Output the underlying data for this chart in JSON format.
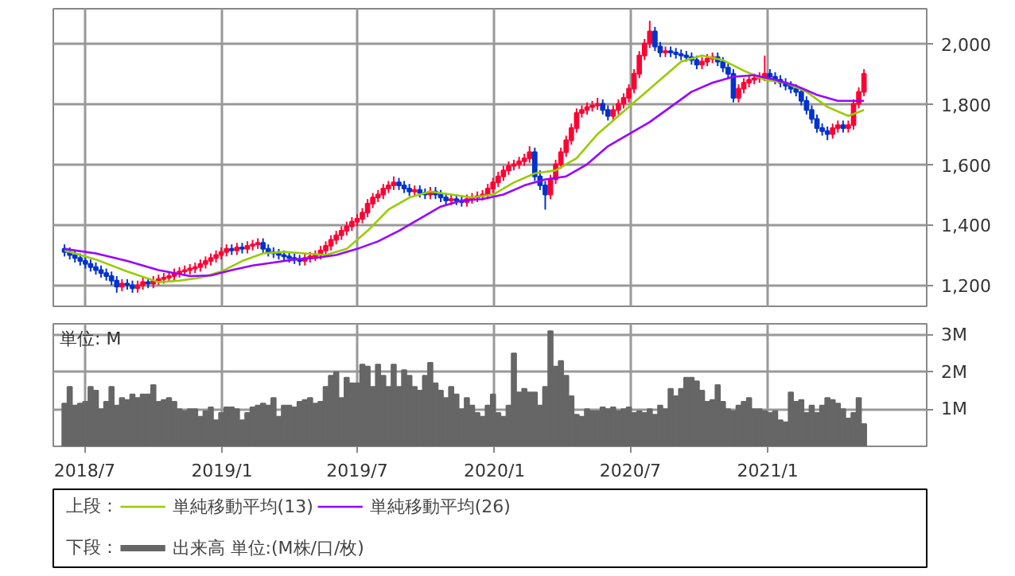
{
  "chart_data": [
    {
      "type": "candlestick",
      "legend_title": "上段：",
      "legend": "bottom",
      "grid": true,
      "tick_labels": "y",
      "xlim": [
        "2018-05-20",
        "2021-08-02"
      ],
      "xticks": [
        {
          "value": "2018-07-01",
          "label": null
        },
        {
          "value": "2019-01-01",
          "label": null
        },
        {
          "value": "2019-07-01",
          "label": null
        },
        {
          "value": "2020-01-01",
          "label": null
        },
        {
          "value": "2020-07-01",
          "label": null
        },
        {
          "value": "2021-01-01",
          "label": null
        }
      ],
      "ylim": [
        1130,
        2115
      ],
      "yticks": [
        {
          "value": 1200,
          "label": "1,200"
        },
        {
          "value": 1400,
          "label": "1,400"
        },
        {
          "value": 1600,
          "label": "1,600"
        },
        {
          "value": 1800,
          "label": "1,800"
        },
        {
          "value": 2000,
          "label": "2,000"
        }
      ],
      "x": [
        "2018-06-04",
        "2018-06-11",
        "2018-06-18",
        "2018-06-25",
        "2018-07-02",
        "2018-07-09",
        "2018-07-16",
        "2018-07-23",
        "2018-07-30",
        "2018-08-06",
        "2018-08-13",
        "2018-08-20",
        "2018-08-27",
        "2018-09-03",
        "2018-09-10",
        "2018-09-17",
        "2018-09-24",
        "2018-10-01",
        "2018-10-08",
        "2018-10-15",
        "2018-10-22",
        "2018-10-29",
        "2018-11-05",
        "2018-11-12",
        "2018-11-19",
        "2018-11-26",
        "2018-12-03",
        "2018-12-10",
        "2018-12-17",
        "2018-12-24",
        "2018-12-31",
        "2019-01-07",
        "2019-01-14",
        "2019-01-21",
        "2019-01-28",
        "2019-02-04",
        "2019-02-11",
        "2019-02-18",
        "2019-02-25",
        "2019-03-04",
        "2019-03-11",
        "2019-03-18",
        "2019-03-25",
        "2019-04-01",
        "2019-04-08",
        "2019-04-15",
        "2019-04-22",
        "2019-04-29",
        "2019-05-06",
        "2019-05-13",
        "2019-05-20",
        "2019-05-27",
        "2019-06-03",
        "2019-06-10",
        "2019-06-17",
        "2019-06-24",
        "2019-07-01",
        "2019-07-08",
        "2019-07-15",
        "2019-07-22",
        "2019-07-29",
        "2019-08-05",
        "2019-08-12",
        "2019-08-19",
        "2019-08-26",
        "2019-09-02",
        "2019-09-09",
        "2019-09-16",
        "2019-09-23",
        "2019-09-30",
        "2019-10-07",
        "2019-10-14",
        "2019-10-21",
        "2019-10-28",
        "2019-11-04",
        "2019-11-11",
        "2019-11-18",
        "2019-11-25",
        "2019-12-02",
        "2019-12-09",
        "2019-12-16",
        "2019-12-23",
        "2019-12-30",
        "2020-01-06",
        "2020-01-13",
        "2020-01-20",
        "2020-01-27",
        "2020-02-03",
        "2020-02-10",
        "2020-02-17",
        "2020-02-24",
        "2020-03-02",
        "2020-03-09",
        "2020-03-16",
        "2020-03-23",
        "2020-03-30",
        "2020-04-06",
        "2020-04-13",
        "2020-04-20",
        "2020-04-27",
        "2020-05-04",
        "2020-05-11",
        "2020-05-18",
        "2020-05-25",
        "2020-06-01",
        "2020-06-08",
        "2020-06-15",
        "2020-06-22",
        "2020-06-29",
        "2020-07-06",
        "2020-07-13",
        "2020-07-20",
        "2020-07-27",
        "2020-08-03",
        "2020-08-10",
        "2020-08-17",
        "2020-08-24",
        "2020-08-31",
        "2020-09-07",
        "2020-09-14",
        "2020-09-21",
        "2020-09-28",
        "2020-10-05",
        "2020-10-12",
        "2020-10-19",
        "2020-10-26",
        "2020-11-02",
        "2020-11-09",
        "2020-11-16",
        "2020-11-23",
        "2020-11-30",
        "2020-12-07",
        "2020-12-14",
        "2020-12-21",
        "2020-12-28",
        "2021-01-04",
        "2021-01-11",
        "2021-01-18",
        "2021-01-25",
        "2021-02-01",
        "2021-02-08",
        "2021-02-15",
        "2021-02-22",
        "2021-03-01",
        "2021-03-08",
        "2021-03-15",
        "2021-03-22",
        "2021-03-29",
        "2021-04-05",
        "2021-04-12",
        "2021-04-19",
        "2021-04-26",
        "2021-05-03",
        "2021-05-10"
      ],
      "ohlc": [
        [
          1320,
          1335,
          1295,
          1310
        ],
        [
          1310,
          1325,
          1285,
          1300
        ],
        [
          1300,
          1315,
          1275,
          1290
        ],
        [
          1290,
          1305,
          1265,
          1280
        ],
        [
          1280,
          1295,
          1255,
          1270
        ],
        [
          1270,
          1285,
          1245,
          1260
        ],
        [
          1260,
          1275,
          1235,
          1250
        ],
        [
          1250,
          1265,
          1225,
          1240
        ],
        [
          1240,
          1255,
          1215,
          1230
        ],
        [
          1230,
          1245,
          1200,
          1215
        ],
        [
          1215,
          1230,
          1175,
          1195
        ],
        [
          1195,
          1220,
          1180,
          1205
        ],
        [
          1205,
          1220,
          1185,
          1200
        ],
        [
          1200,
          1215,
          1175,
          1190
        ],
        [
          1190,
          1215,
          1175,
          1200
        ],
        [
          1200,
          1225,
          1185,
          1210
        ],
        [
          1210,
          1225,
          1190,
          1205
        ],
        [
          1205,
          1230,
          1190,
          1215
        ],
        [
          1215,
          1235,
          1200,
          1220
        ],
        [
          1220,
          1240,
          1205,
          1225
        ],
        [
          1225,
          1245,
          1210,
          1230
        ],
        [
          1230,
          1255,
          1215,
          1240
        ],
        [
          1240,
          1260,
          1225,
          1245
        ],
        [
          1245,
          1265,
          1230,
          1250
        ],
        [
          1250,
          1270,
          1235,
          1255
        ],
        [
          1255,
          1275,
          1240,
          1260
        ],
        [
          1260,
          1285,
          1245,
          1270
        ],
        [
          1270,
          1295,
          1255,
          1280
        ],
        [
          1280,
          1305,
          1265,
          1290
        ],
        [
          1290,
          1315,
          1275,
          1300
        ],
        [
          1300,
          1325,
          1285,
          1310
        ],
        [
          1310,
          1335,
          1295,
          1320
        ],
        [
          1320,
          1335,
          1300,
          1315
        ],
        [
          1315,
          1340,
          1300,
          1325
        ],
        [
          1325,
          1340,
          1305,
          1320
        ],
        [
          1320,
          1345,
          1305,
          1330
        ],
        [
          1330,
          1350,
          1315,
          1335
        ],
        [
          1335,
          1355,
          1320,
          1340
        ],
        [
          1340,
          1355,
          1305,
          1320
        ],
        [
          1320,
          1335,
          1295,
          1310
        ],
        [
          1310,
          1325,
          1290,
          1305
        ],
        [
          1305,
          1320,
          1285,
          1300
        ],
        [
          1300,
          1315,
          1280,
          1295
        ],
        [
          1295,
          1310,
          1275,
          1290
        ],
        [
          1290,
          1305,
          1270,
          1285
        ],
        [
          1285,
          1300,
          1265,
          1280
        ],
        [
          1280,
          1305,
          1265,
          1290
        ],
        [
          1290,
          1310,
          1275,
          1295
        ],
        [
          1295,
          1315,
          1280,
          1300
        ],
        [
          1300,
          1330,
          1285,
          1315
        ],
        [
          1315,
          1345,
          1300,
          1330
        ],
        [
          1330,
          1365,
          1315,
          1350
        ],
        [
          1350,
          1380,
          1335,
          1365
        ],
        [
          1365,
          1395,
          1350,
          1380
        ],
        [
          1380,
          1410,
          1365,
          1395
        ],
        [
          1395,
          1425,
          1380,
          1410
        ],
        [
          1410,
          1435,
          1395,
          1420
        ],
        [
          1420,
          1455,
          1405,
          1440
        ],
        [
          1440,
          1485,
          1425,
          1470
        ],
        [
          1470,
          1505,
          1455,
          1490
        ],
        [
          1490,
          1515,
          1475,
          1500
        ],
        [
          1500,
          1535,
          1485,
          1520
        ],
        [
          1520,
          1545,
          1505,
          1530
        ],
        [
          1530,
          1560,
          1515,
          1540
        ],
        [
          1540,
          1555,
          1515,
          1530
        ],
        [
          1530,
          1545,
          1505,
          1520
        ],
        [
          1520,
          1535,
          1495,
          1510
        ],
        [
          1510,
          1530,
          1495,
          1515
        ],
        [
          1515,
          1530,
          1490,
          1505
        ],
        [
          1505,
          1520,
          1485,
          1500
        ],
        [
          1500,
          1525,
          1485,
          1510
        ],
        [
          1510,
          1525,
          1485,
          1500
        ],
        [
          1500,
          1515,
          1475,
          1490
        ],
        [
          1490,
          1505,
          1465,
          1480
        ],
        [
          1480,
          1500,
          1465,
          1485
        ],
        [
          1485,
          1500,
          1465,
          1480
        ],
        [
          1480,
          1495,
          1460,
          1475
        ],
        [
          1475,
          1500,
          1460,
          1485
        ],
        [
          1485,
          1505,
          1470,
          1490
        ],
        [
          1490,
          1510,
          1475,
          1495
        ],
        [
          1495,
          1515,
          1480,
          1500
        ],
        [
          1500,
          1535,
          1485,
          1520
        ],
        [
          1520,
          1555,
          1505,
          1540
        ],
        [
          1540,
          1575,
          1525,
          1560
        ],
        [
          1560,
          1595,
          1545,
          1580
        ],
        [
          1580,
          1610,
          1565,
          1595
        ],
        [
          1595,
          1615,
          1580,
          1600
        ],
        [
          1600,
          1625,
          1585,
          1610
        ],
        [
          1610,
          1635,
          1595,
          1620
        ],
        [
          1620,
          1660,
          1605,
          1640
        ],
        [
          1640,
          1655,
          1545,
          1560
        ],
        [
          1560,
          1580,
          1515,
          1530
        ],
        [
          1530,
          1545,
          1450,
          1500
        ],
        [
          1500,
          1565,
          1485,
          1550
        ],
        [
          1550,
          1615,
          1535,
          1600
        ],
        [
          1600,
          1655,
          1585,
          1640
        ],
        [
          1640,
          1695,
          1625,
          1680
        ],
        [
          1680,
          1735,
          1665,
          1720
        ],
        [
          1720,
          1785,
          1705,
          1770
        ],
        [
          1770,
          1795,
          1755,
          1780
        ],
        [
          1780,
          1805,
          1765,
          1790
        ],
        [
          1790,
          1810,
          1775,
          1795
        ],
        [
          1795,
          1820,
          1780,
          1800
        ],
        [
          1800,
          1815,
          1765,
          1780
        ],
        [
          1780,
          1795,
          1745,
          1760
        ],
        [
          1760,
          1795,
          1745,
          1780
        ],
        [
          1780,
          1815,
          1765,
          1800
        ],
        [
          1800,
          1835,
          1785,
          1820
        ],
        [
          1820,
          1865,
          1805,
          1850
        ],
        [
          1850,
          1915,
          1835,
          1900
        ],
        [
          1900,
          1975,
          1885,
          1960
        ],
        [
          1960,
          2015,
          1945,
          2000
        ],
        [
          2000,
          2075,
          1985,
          2040
        ],
        [
          2040,
          2055,
          1975,
          1990
        ],
        [
          1990,
          2005,
          1955,
          1970
        ],
        [
          1970,
          1990,
          1955,
          1975
        ],
        [
          1975,
          1990,
          1955,
          1970
        ],
        [
          1970,
          1985,
          1950,
          1965
        ],
        [
          1965,
          1980,
          1945,
          1960
        ],
        [
          1960,
          1975,
          1940,
          1955
        ],
        [
          1955,
          1970,
          1930,
          1945
        ],
        [
          1945,
          1960,
          1915,
          1930
        ],
        [
          1930,
          1955,
          1915,
          1940
        ],
        [
          1940,
          1965,
          1925,
          1950
        ],
        [
          1950,
          1970,
          1935,
          1955
        ],
        [
          1955,
          1970,
          1925,
          1940
        ],
        [
          1940,
          1955,
          1905,
          1920
        ],
        [
          1920,
          1935,
          1885,
          1900
        ],
        [
          1900,
          1915,
          1805,
          1820
        ],
        [
          1820,
          1865,
          1805,
          1850
        ],
        [
          1850,
          1885,
          1835,
          1870
        ],
        [
          1870,
          1895,
          1855,
          1880
        ],
        [
          1880,
          1900,
          1865,
          1885
        ],
        [
          1885,
          1905,
          1870,
          1890
        ],
        [
          1890,
          1960,
          1875,
          1900
        ],
        [
          1900,
          1915,
          1875,
          1890
        ],
        [
          1890,
          1905,
          1865,
          1880
        ],
        [
          1880,
          1895,
          1855,
          1870
        ],
        [
          1870,
          1885,
          1845,
          1860
        ],
        [
          1860,
          1875,
          1835,
          1850
        ],
        [
          1850,
          1865,
          1825,
          1840
        ],
        [
          1840,
          1855,
          1795,
          1810
        ],
        [
          1810,
          1825,
          1765,
          1780
        ],
        [
          1780,
          1795,
          1735,
          1750
        ],
        [
          1750,
          1765,
          1705,
          1720
        ],
        [
          1720,
          1735,
          1695,
          1710
        ],
        [
          1710,
          1725,
          1680,
          1700
        ],
        [
          1700,
          1735,
          1685,
          1720
        ],
        [
          1720,
          1745,
          1705,
          1730
        ],
        [
          1730,
          1745,
          1705,
          1720
        ],
        [
          1720,
          1745,
          1705,
          1730
        ],
        [
          1730,
          1815,
          1715,
          1800
        ],
        [
          1800,
          1855,
          1785,
          1840
        ],
        [
          1840,
          1915,
          1825,
          1900
        ]
      ],
      "colors": [
        "#0033cc",
        "#0033cc",
        "#0033cc",
        "#0033cc",
        "#0033cc",
        "#0033cc",
        "#0033cc",
        "#0033cc",
        "#0033cc",
        "#0033cc",
        "#0033cc",
        "#ff0033",
        "#0033cc",
        "#0033cc",
        "#ff0033",
        "#ff0033",
        "#0033cc",
        "#ff0033",
        "#ff0033",
        "#ff0033",
        "#ff0033",
        "#ff0033",
        "#ff0033",
        "#ff0033",
        "#ff0033",
        "#ff0033",
        "#ff0033",
        "#ff0033",
        "#ff0033",
        "#ff0033",
        "#ff0033",
        "#ff0033",
        "#0033cc",
        "#ff0033",
        "#0033cc",
        "#ff0033",
        "#ff0033",
        "#ff0033",
        "#0033cc",
        "#0033cc",
        "#0033cc",
        "#0033cc",
        "#0033cc",
        "#0033cc",
        "#0033cc",
        "#0033cc",
        "#ff0033",
        "#ff0033",
        "#ff0033",
        "#ff0033",
        "#ff0033",
        "#ff0033",
        "#ff0033",
        "#ff0033",
        "#ff0033",
        "#ff0033",
        "#ff0033",
        "#ff0033",
        "#ff0033",
        "#ff0033",
        "#ff0033",
        "#ff0033",
        "#ff0033",
        "#ff0033",
        "#0033cc",
        "#0033cc",
        "#0033cc",
        "#ff0033",
        "#0033cc",
        "#0033cc",
        "#ff0033",
        "#0033cc",
        "#0033cc",
        "#0033cc",
        "#ff0033",
        "#0033cc",
        "#0033cc",
        "#ff0033",
        "#ff0033",
        "#ff0033",
        "#ff0033",
        "#ff0033",
        "#ff0033",
        "#ff0033",
        "#ff0033",
        "#ff0033",
        "#ff0033",
        "#ff0033",
        "#ff0033",
        "#ff0033",
        "#0033cc",
        "#0033cc",
        "#0033cc",
        "#ff0033",
        "#ff0033",
        "#ff0033",
        "#ff0033",
        "#ff0033",
        "#ff0033",
        "#ff0033",
        "#ff0033",
        "#ff0033",
        "#ff0033",
        "#0033cc",
        "#0033cc",
        "#ff0033",
        "#ff0033",
        "#ff0033",
        "#ff0033",
        "#ff0033",
        "#ff0033",
        "#ff0033",
        "#ff0033",
        "#0033cc",
        "#0033cc",
        "#ff0033",
        "#0033cc",
        "#0033cc",
        "#0033cc",
        "#0033cc",
        "#0033cc",
        "#0033cc",
        "#ff0033",
        "#ff0033",
        "#ff0033",
        "#0033cc",
        "#0033cc",
        "#0033cc",
        "#0033cc",
        "#ff0033",
        "#ff0033",
        "#ff0033",
        "#ff0033",
        "#ff0033",
        "#ff0033",
        "#0033cc",
        "#0033cc",
        "#0033cc",
        "#0033cc",
        "#0033cc",
        "#0033cc",
        "#0033cc",
        "#0033cc",
        "#0033cc",
        "#0033cc",
        "#0033cc",
        "#0033cc",
        "#ff0033",
        "#ff0033",
        "#0033cc",
        "#ff0033",
        "#ff0033",
        "#ff0033",
        "#ff0033"
      ],
      "series": [
        {
          "type": "line",
          "name": "単純移動平均(13)",
          "color": "#99cc00",
          "x": [
            "2018-06-04",
            "2018-07-16",
            "2018-08-27",
            "2018-10-08",
            "2018-11-05",
            "2018-12-03",
            "2018-12-31",
            "2019-01-28",
            "2019-02-25",
            "2019-03-25",
            "2019-04-22",
            "2019-05-20",
            "2019-06-17",
            "2019-07-15",
            "2019-08-12",
            "2019-09-09",
            "2019-10-07",
            "2019-11-04",
            "2019-12-02",
            "2019-12-30",
            "2020-01-27",
            "2020-02-24",
            "2020-03-23",
            "2020-04-20",
            "2020-05-18",
            "2020-06-15",
            "2020-07-13",
            "2020-08-10",
            "2020-09-07",
            "2020-10-05",
            "2020-11-02",
            "2020-11-30",
            "2020-12-28",
            "2021-01-25",
            "2021-02-22",
            "2021-03-22",
            "2021-04-19",
            "2021-05-10"
          ],
          "values": [
            1315,
            1285,
            1245,
            1210,
            1215,
            1225,
            1245,
            1280,
            1305,
            1310,
            1305,
            1300,
            1320,
            1380,
            1450,
            1490,
            1510,
            1500,
            1490,
            1500,
            1540,
            1570,
            1580,
            1620,
            1700,
            1760,
            1820,
            1880,
            1940,
            1960,
            1945,
            1910,
            1880,
            1870,
            1840,
            1790,
            1760,
            1780
          ]
        },
        {
          "type": "line",
          "name": "単純移動平均(26)",
          "color": "#9900ff",
          "x": [
            "2018-06-04",
            "2018-07-16",
            "2018-08-27",
            "2018-10-08",
            "2018-11-19",
            "2018-12-17",
            "2019-01-14",
            "2019-02-11",
            "2019-03-11",
            "2019-04-08",
            "2019-05-06",
            "2019-06-03",
            "2019-07-01",
            "2019-07-29",
            "2019-08-26",
            "2019-09-23",
            "2019-10-21",
            "2019-11-18",
            "2019-12-16",
            "2020-01-13",
            "2020-02-10",
            "2020-03-09",
            "2020-04-06",
            "2020-05-04",
            "2020-06-01",
            "2020-06-29",
            "2020-07-27",
            "2020-08-24",
            "2020-09-21",
            "2020-10-19",
            "2020-11-16",
            "2020-12-14",
            "2021-01-11",
            "2021-02-08",
            "2021-03-08",
            "2021-04-05",
            "2021-05-10"
          ],
          "values": [
            1320,
            1305,
            1280,
            1250,
            1230,
            1232,
            1250,
            1265,
            1275,
            1285,
            1290,
            1300,
            1320,
            1345,
            1380,
            1420,
            1460,
            1480,
            1485,
            1500,
            1530,
            1550,
            1560,
            1600,
            1660,
            1700,
            1740,
            1790,
            1840,
            1870,
            1890,
            1895,
            1880,
            1860,
            1830,
            1810,
            1810
          ]
        }
      ]
    },
    {
      "type": "bar",
      "legend_title": "下段：",
      "legend": "bottom",
      "grid": true,
      "ylabel": "単位: M",
      "xlim": [
        "2018-05-20",
        "2021-08-02"
      ],
      "xticks": [
        {
          "value": "2018-07-01",
          "label": "2018/7"
        },
        {
          "value": "2019-01-01",
          "label": "2019/1"
        },
        {
          "value": "2019-07-01",
          "label": "2019/7"
        },
        {
          "value": "2020-01-01",
          "label": "2020/1"
        },
        {
          "value": "2020-07-01",
          "label": "2020/7"
        },
        {
          "value": "2021-01-01",
          "label": "2021/1"
        }
      ],
      "ylim": [
        0,
        3.3
      ],
      "yticks": [
        {
          "value": 1,
          "label": "1M"
        },
        {
          "value": 2,
          "label": "2M"
        },
        {
          "value": 3,
          "label": "3M"
        }
      ],
      "x": [
        "2018-06-04",
        "2018-06-11",
        "2018-06-18",
        "2018-06-25",
        "2018-07-02",
        "2018-07-09",
        "2018-07-16",
        "2018-07-23",
        "2018-07-30",
        "2018-08-06",
        "2018-08-13",
        "2018-08-20",
        "2018-08-27",
        "2018-09-03",
        "2018-09-10",
        "2018-09-17",
        "2018-09-24",
        "2018-10-01",
        "2018-10-08",
        "2018-10-15",
        "2018-10-22",
        "2018-10-29",
        "2018-11-05",
        "2018-11-12",
        "2018-11-19",
        "2018-11-26",
        "2018-12-03",
        "2018-12-10",
        "2018-12-17",
        "2018-12-24",
        "2018-12-31",
        "2019-01-07",
        "2019-01-14",
        "2019-01-21",
        "2019-01-28",
        "2019-02-04",
        "2019-02-11",
        "2019-02-18",
        "2019-02-25",
        "2019-03-04",
        "2019-03-11",
        "2019-03-18",
        "2019-03-25",
        "2019-04-01",
        "2019-04-08",
        "2019-04-15",
        "2019-04-22",
        "2019-04-29",
        "2019-05-06",
        "2019-05-13",
        "2019-05-20",
        "2019-05-27",
        "2019-06-03",
        "2019-06-10",
        "2019-06-17",
        "2019-06-24",
        "2019-07-01",
        "2019-07-08",
        "2019-07-15",
        "2019-07-22",
        "2019-07-29",
        "2019-08-05",
        "2019-08-12",
        "2019-08-19",
        "2019-08-26",
        "2019-09-02",
        "2019-09-09",
        "2019-09-16",
        "2019-09-23",
        "2019-09-30",
        "2019-10-07",
        "2019-10-14",
        "2019-10-21",
        "2019-10-28",
        "2019-11-04",
        "2019-11-11",
        "2019-11-18",
        "2019-11-25",
        "2019-12-02",
        "2019-12-09",
        "2019-12-16",
        "2019-12-23",
        "2019-12-30",
        "2020-01-06",
        "2020-01-13",
        "2020-01-20",
        "2020-01-27",
        "2020-02-03",
        "2020-02-10",
        "2020-02-17",
        "2020-02-24",
        "2020-03-02",
        "2020-03-09",
        "2020-03-16",
        "2020-03-23",
        "2020-03-30",
        "2020-04-06",
        "2020-04-13",
        "2020-04-20",
        "2020-04-27",
        "2020-05-04",
        "2020-05-11",
        "2020-05-18",
        "2020-05-25",
        "2020-06-01",
        "2020-06-08",
        "2020-06-15",
        "2020-06-22",
        "2020-06-29",
        "2020-07-06",
        "2020-07-13",
        "2020-07-20",
        "2020-07-27",
        "2020-08-03",
        "2020-08-10",
        "2020-08-17",
        "2020-08-24",
        "2020-08-31",
        "2020-09-07",
        "2020-09-14",
        "2020-09-21",
        "2020-09-28",
        "2020-10-05",
        "2020-10-12",
        "2020-10-19",
        "2020-10-26",
        "2020-11-02",
        "2020-11-09",
        "2020-11-16",
        "2020-11-23",
        "2020-11-30",
        "2020-12-07",
        "2020-12-14",
        "2020-12-21",
        "2020-12-28",
        "2021-01-04",
        "2021-01-11",
        "2021-01-18",
        "2021-01-25",
        "2021-02-01",
        "2021-02-08",
        "2021-02-15",
        "2021-02-22",
        "2021-03-01",
        "2021-03-08",
        "2021-03-15",
        "2021-03-22",
        "2021-03-29",
        "2021-04-05",
        "2021-04-12",
        "2021-04-19",
        "2021-04-26",
        "2021-05-03",
        "2021-05-10"
      ],
      "series": [
        {
          "name": "出来高 単位:(M株/口/枚)",
          "color": "#666666",
          "values": [
            1.15,
            1.6,
            1.1,
            1.15,
            1.2,
            1.6,
            1.5,
            1.0,
            1.2,
            1.6,
            1.1,
            1.3,
            1.25,
            1.4,
            1.3,
            1.4,
            1.4,
            1.65,
            1.2,
            1.25,
            1.3,
            1.2,
            1.0,
            0.95,
            1.0,
            1.0,
            0.8,
            0.95,
            1.05,
            0.7,
            0.9,
            1.05,
            1.05,
            1.0,
            0.7,
            0.9,
            1.05,
            1.1,
            1.15,
            1.1,
            1.3,
            0.8,
            1.1,
            1.1,
            1.05,
            1.2,
            1.25,
            1.3,
            1.15,
            1.2,
            1.6,
            1.9,
            2.0,
            1.3,
            1.85,
            1.7,
            1.7,
            2.2,
            2.15,
            1.6,
            2.2,
            1.9,
            1.6,
            2.2,
            1.6,
            2.05,
            1.9,
            1.6,
            1.5,
            1.9,
            2.25,
            1.7,
            1.5,
            1.3,
            1.6,
            1.4,
            1.0,
            1.3,
            1.1,
            0.9,
            0.8,
            1.1,
            1.4,
            0.9,
            0.8,
            1.1,
            2.5,
            1.45,
            1.55,
            1.45,
            1.45,
            1.1,
            1.6,
            3.1,
            2.15,
            2.3,
            1.9,
            1.35,
            0.85,
            0.8,
            1.0,
            0.95,
            0.95,
            1.05,
            1.0,
            1.05,
            0.95,
            1.0,
            1.05,
            0.9,
            0.95,
            0.9,
            1.0,
            0.85,
            1.1,
            1.0,
            1.55,
            1.35,
            1.55,
            1.85,
            1.85,
            1.75,
            1.5,
            1.2,
            1.25,
            1.65,
            1.2,
            1.0,
            0.95,
            1.1,
            1.2,
            1.3,
            1.0,
            1.0,
            0.95,
            0.9,
            0.95,
            0.7,
            0.65,
            1.45,
            1.2,
            1.25,
            0.9,
            1.1,
            0.9,
            1.1,
            1.3,
            1.25,
            1.15,
            1.0,
            0.75,
            0.9,
            1.3,
            0.6
          ]
        }
      ]
    }
  ]
}
